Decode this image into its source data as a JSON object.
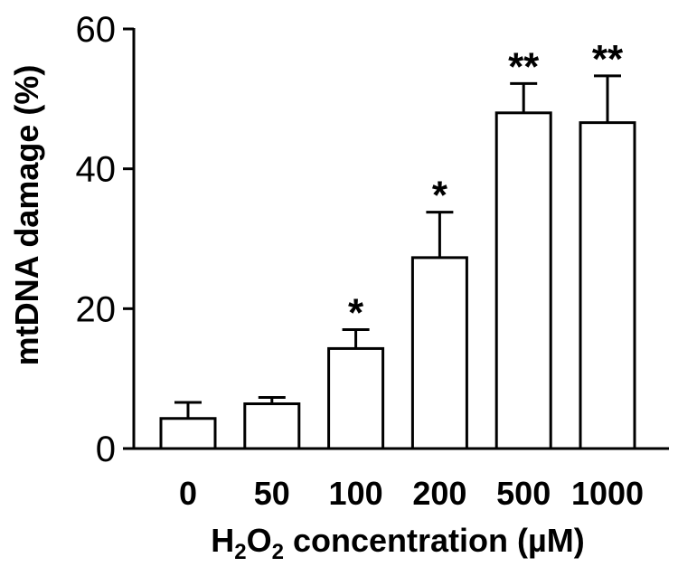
{
  "chart_data": {
    "type": "bar",
    "categories": [
      "0",
      "50",
      "100",
      "200",
      "500",
      "1000"
    ],
    "values": [
      4.3,
      6.4,
      14.3,
      27.3,
      48.0,
      46.6
    ],
    "errors": [
      2.3,
      0.9,
      2.7,
      6.5,
      4.2,
      6.7
    ],
    "significance": [
      "",
      "",
      "*",
      "*",
      "**",
      "**"
    ],
    "ylabel": "mtDNA damage (%)",
    "xlabel": {
      "prefix": "H",
      "sub1": "2",
      "mid": "O",
      "sub2": "2",
      "suffix": " concentration (µM)"
    },
    "ylim": [
      0,
      60
    ],
    "yticks": [
      "0",
      "20",
      "40",
      "60"
    ],
    "grid": false,
    "bar_fill": "#ffffff",
    "bar_stroke": "#000000"
  }
}
